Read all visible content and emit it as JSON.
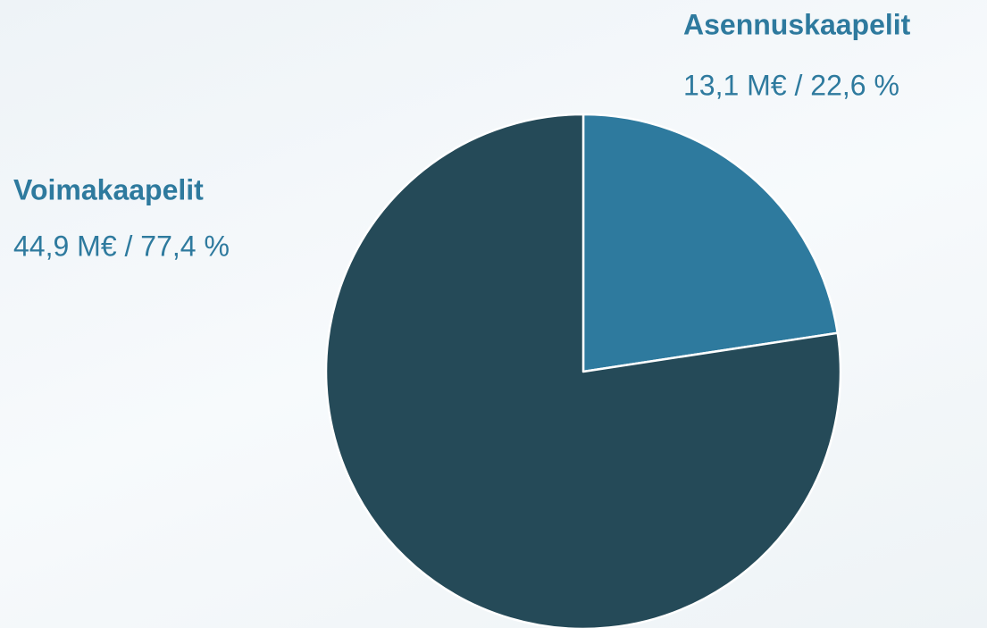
{
  "chart_data": {
    "type": "pie",
    "categories": [
      "Asennuskaapelit",
      "Voimakaapelit"
    ],
    "values": [
      22.6,
      77.4
    ],
    "value_labels": [
      "13,1 M€ / 22,6 %",
      "44,9 M€ / 77,4 %"
    ],
    "colors": [
      "#2e7a9e",
      "#254a58"
    ],
    "label_color": "#2e7a9e"
  }
}
